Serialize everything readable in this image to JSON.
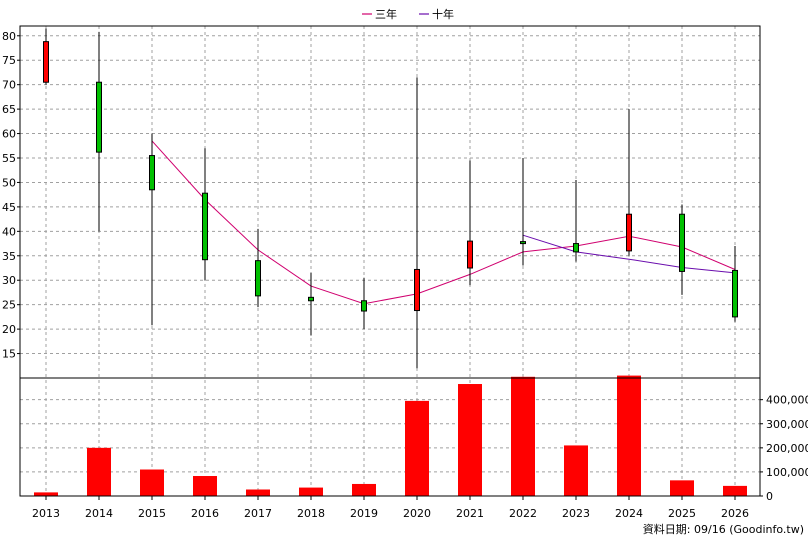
{
  "legend": [
    {
      "label": "三年",
      "color": "#d0006f"
    },
    {
      "label": "十年",
      "color": "#6a0dad"
    }
  ],
  "source_note": "資料日期: 09/16  (Goodinfo.tw)",
  "colors": {
    "up": "#ff0000",
    "down": "#00c000",
    "volume": "#ff0000"
  },
  "chart_data": {
    "type": "candlestick",
    "categories": [
      "2013",
      "2014",
      "2015",
      "2016",
      "2017",
      "2018",
      "2019",
      "2020",
      "2021",
      "2022",
      "2023",
      "2024",
      "2025",
      "2026"
    ],
    "price_axis": {
      "min": 10,
      "max": 82,
      "ticks": [
        15,
        20,
        25,
        30,
        35,
        40,
        45,
        50,
        55,
        60,
        65,
        70,
        75,
        80
      ]
    },
    "candles": [
      {
        "year": "2013",
        "open": 70.5,
        "close": 78.8,
        "high": 81.5,
        "low": 70.0
      },
      {
        "year": "2014",
        "open": 70.5,
        "close": 56.2,
        "high": 80.8,
        "low": 40.0
      },
      {
        "year": "2015",
        "open": 55.5,
        "close": 48.5,
        "high": 60.0,
        "low": 20.8
      },
      {
        "year": "2016",
        "open": 47.8,
        "close": 34.2,
        "high": 57.0,
        "low": 30.0
      },
      {
        "year": "2017",
        "open": 34.0,
        "close": 26.8,
        "high": 40.5,
        "low": 24.5
      },
      {
        "year": "2018",
        "open": 26.5,
        "close": 25.8,
        "high": 31.5,
        "low": 18.7
      },
      {
        "year": "2019",
        "open": 25.8,
        "close": 23.7,
        "high": 30.5,
        "low": 20.0
      },
      {
        "year": "2020",
        "open": 23.8,
        "close": 32.2,
        "high": 71.5,
        "low": 12.0
      },
      {
        "year": "2021",
        "open": 32.5,
        "close": 38.0,
        "high": 54.5,
        "low": 29.0
      },
      {
        "year": "2022",
        "open": 37.9,
        "close": 37.7,
        "high": 55.0,
        "low": 33.0
      },
      {
        "year": "2023",
        "open": 37.5,
        "close": 35.8,
        "high": 50.5,
        "low": 33.8
      },
      {
        "year": "2024",
        "open": 36.0,
        "close": 43.5,
        "high": 65.0,
        "low": 35.0
      },
      {
        "year": "2025",
        "open": 43.5,
        "close": 31.8,
        "high": 45.5,
        "low": 27.0
      },
      {
        "year": "2026",
        "open": 32.0,
        "close": 22.5,
        "high": 37.0,
        "low": 21.5
      }
    ],
    "series": [
      {
        "name": "三年",
        "color": "#d0006f",
        "values": [
          null,
          null,
          58.5,
          46.5,
          36.2,
          28.8,
          25.2,
          27.2,
          31.2,
          35.8,
          37.0,
          39.0,
          36.8,
          32.2
        ]
      },
      {
        "name": "十年",
        "color": "#6a0dad",
        "values": [
          null,
          null,
          null,
          null,
          null,
          null,
          null,
          null,
          null,
          39.2,
          35.8,
          34.3,
          32.6,
          31.5
        ]
      }
    ],
    "volume_axis": {
      "min": 0,
      "max": 490000,
      "ticks": [
        0,
        100000,
        200000,
        300000,
        400000
      ],
      "tick_labels": [
        "0",
        "100,000",
        "200,000",
        "300,000",
        "400,000"
      ]
    },
    "volume": [
      15000,
      200000,
      110000,
      83000,
      27000,
      35000,
      50000,
      395000,
      465000,
      495000,
      210000,
      500000,
      65000,
      42000
    ]
  }
}
